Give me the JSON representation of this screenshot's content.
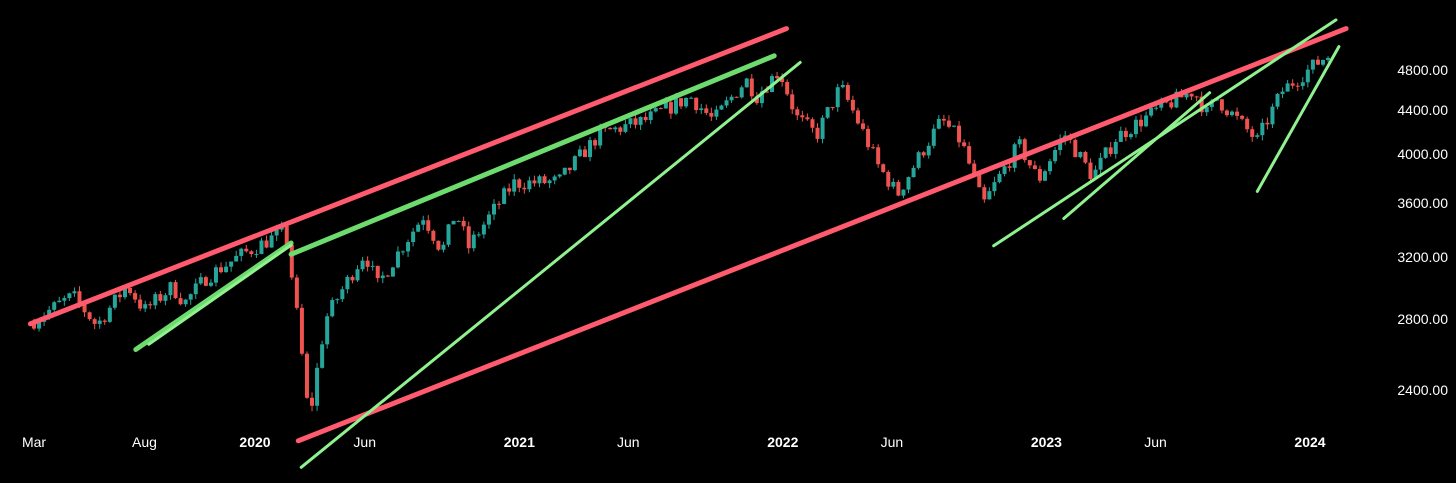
{
  "chart_data": {
    "type": "candlestick",
    "title": "",
    "xlabel": "",
    "ylabel": "",
    "y_scale": "log",
    "x_range": [
      "2019-03-01",
      "2024-02-01"
    ],
    "y_range": [
      2100,
      5300
    ],
    "y_axis_position": "right",
    "grid": false,
    "background": "#000000",
    "colors": {
      "up": "#26a69a",
      "down": "#ef5350",
      "resistance": "#ff5a6e",
      "support": "#8ff28f",
      "channel": "#6ddb6d",
      "tick_text": "#ffffff"
    },
    "y_ticks": [
      "2400.00",
      "2800.00",
      "3200.00",
      "3600.00",
      "4000.00",
      "4400.00",
      "4800.00"
    ],
    "x_ticks": [
      {
        "date": "2019-03-01",
        "label": "Mar",
        "bold": false
      },
      {
        "date": "2019-08-01",
        "label": "Aug",
        "bold": false
      },
      {
        "date": "2020-01-01",
        "label": "2020",
        "bold": true
      },
      {
        "date": "2020-06-01",
        "label": "Jun",
        "bold": false
      },
      {
        "date": "2021-01-01",
        "label": "2021",
        "bold": true
      },
      {
        "date": "2021-06-01",
        "label": "Jun",
        "bold": false
      },
      {
        "date": "2022-01-01",
        "label": "2022",
        "bold": true
      },
      {
        "date": "2022-06-01",
        "label": "Jun",
        "bold": false
      },
      {
        "date": "2023-01-01",
        "label": "2023",
        "bold": true
      },
      {
        "date": "2023-06-01",
        "label": "Jun",
        "bold": false
      },
      {
        "date": "2024-01-01",
        "label": "2024",
        "bold": true
      }
    ],
    "price_path": [
      [
        "2019-03-01",
        2770
      ],
      [
        "2019-04-15",
        2900
      ],
      [
        "2019-05-01",
        2940
      ],
      [
        "2019-06-03",
        2760
      ],
      [
        "2019-07-15",
        3010
      ],
      [
        "2019-08-08",
        2850
      ],
      [
        "2019-09-15",
        3000
      ],
      [
        "2019-10-03",
        2900
      ],
      [
        "2019-11-01",
        3060
      ],
      [
        "2019-12-15",
        3200
      ],
      [
        "2020-02-19",
        3386
      ],
      [
        "2020-03-23",
        2237
      ],
      [
        "2020-04-15",
        2800
      ],
      [
        "2020-06-08",
        3230
      ],
      [
        "2020-06-26",
        3010
      ],
      [
        "2020-08-28",
        3500
      ],
      [
        "2020-09-23",
        3240
      ],
      [
        "2020-10-12",
        3530
      ],
      [
        "2020-10-30",
        3270
      ],
      [
        "2020-12-31",
        3756
      ],
      [
        "2021-03-04",
        3770
      ],
      [
        "2021-04-30",
        4180
      ],
      [
        "2021-06-30",
        4300
      ],
      [
        "2021-09-02",
        4530
      ],
      [
        "2021-10-04",
        4300
      ],
      [
        "2021-11-18",
        4700
      ],
      [
        "2021-12-03",
        4540
      ],
      [
        "2022-01-03",
        4796
      ],
      [
        "2022-01-27",
        4330
      ],
      [
        "2022-02-24",
        4170
      ],
      [
        "2022-03-29",
        4630
      ],
      [
        "2022-05-20",
        3900
      ],
      [
        "2022-06-16",
        3666
      ],
      [
        "2022-08-16",
        4305
      ],
      [
        "2022-09-12",
        4110
      ],
      [
        "2022-10-12",
        3577
      ],
      [
        "2022-12-01",
        4080
      ],
      [
        "2022-12-28",
        3780
      ],
      [
        "2023-02-02",
        4180
      ],
      [
        "2023-03-13",
        3810
      ],
      [
        "2023-04-15",
        4150
      ],
      [
        "2023-06-15",
        4420
      ],
      [
        "2023-07-31",
        4590
      ],
      [
        "2023-08-18",
        4370
      ],
      [
        "2023-09-01",
        4510
      ],
      [
        "2023-10-27",
        4117
      ],
      [
        "2023-12-01",
        4590
      ],
      [
        "2024-01-31",
        4950
      ]
    ],
    "trendlines": [
      {
        "style": "resistance",
        "from": [
          "2019-02-24",
          2770
        ],
        "to": [
          "2022-01-06",
          5250
        ]
      },
      {
        "style": "resistance",
        "from": [
          "2020-03-01",
          2150
        ],
        "to": [
          "2024-02-20",
          5250
        ]
      },
      {
        "style": "channel",
        "from": [
          "2019-07-20",
          2620
        ],
        "to": [
          "2020-02-20",
          3300
        ]
      },
      {
        "style": "support",
        "from": [
          "2019-08-07",
          2650
        ],
        "to": [
          "2020-02-20",
          3285
        ]
      },
      {
        "style": "channel",
        "from": [
          "2020-02-20",
          3220
        ],
        "to": [
          "2021-12-20",
          4950
        ]
      },
      {
        "style": "support",
        "from": [
          "2020-03-05",
          2030
        ],
        "to": [
          "2022-01-25",
          4880
        ]
      },
      {
        "style": "support",
        "from": [
          "2022-10-20",
          3280
        ],
        "to": [
          "2024-02-06",
          5350
        ]
      },
      {
        "style": "support",
        "from": [
          "2023-01-25",
          3480
        ],
        "to": [
          "2023-08-15",
          4570
        ]
      },
      {
        "style": "support",
        "from": [
          "2023-10-20",
          3690
        ],
        "to": [
          "2024-02-10",
          5050
        ]
      }
    ]
  }
}
